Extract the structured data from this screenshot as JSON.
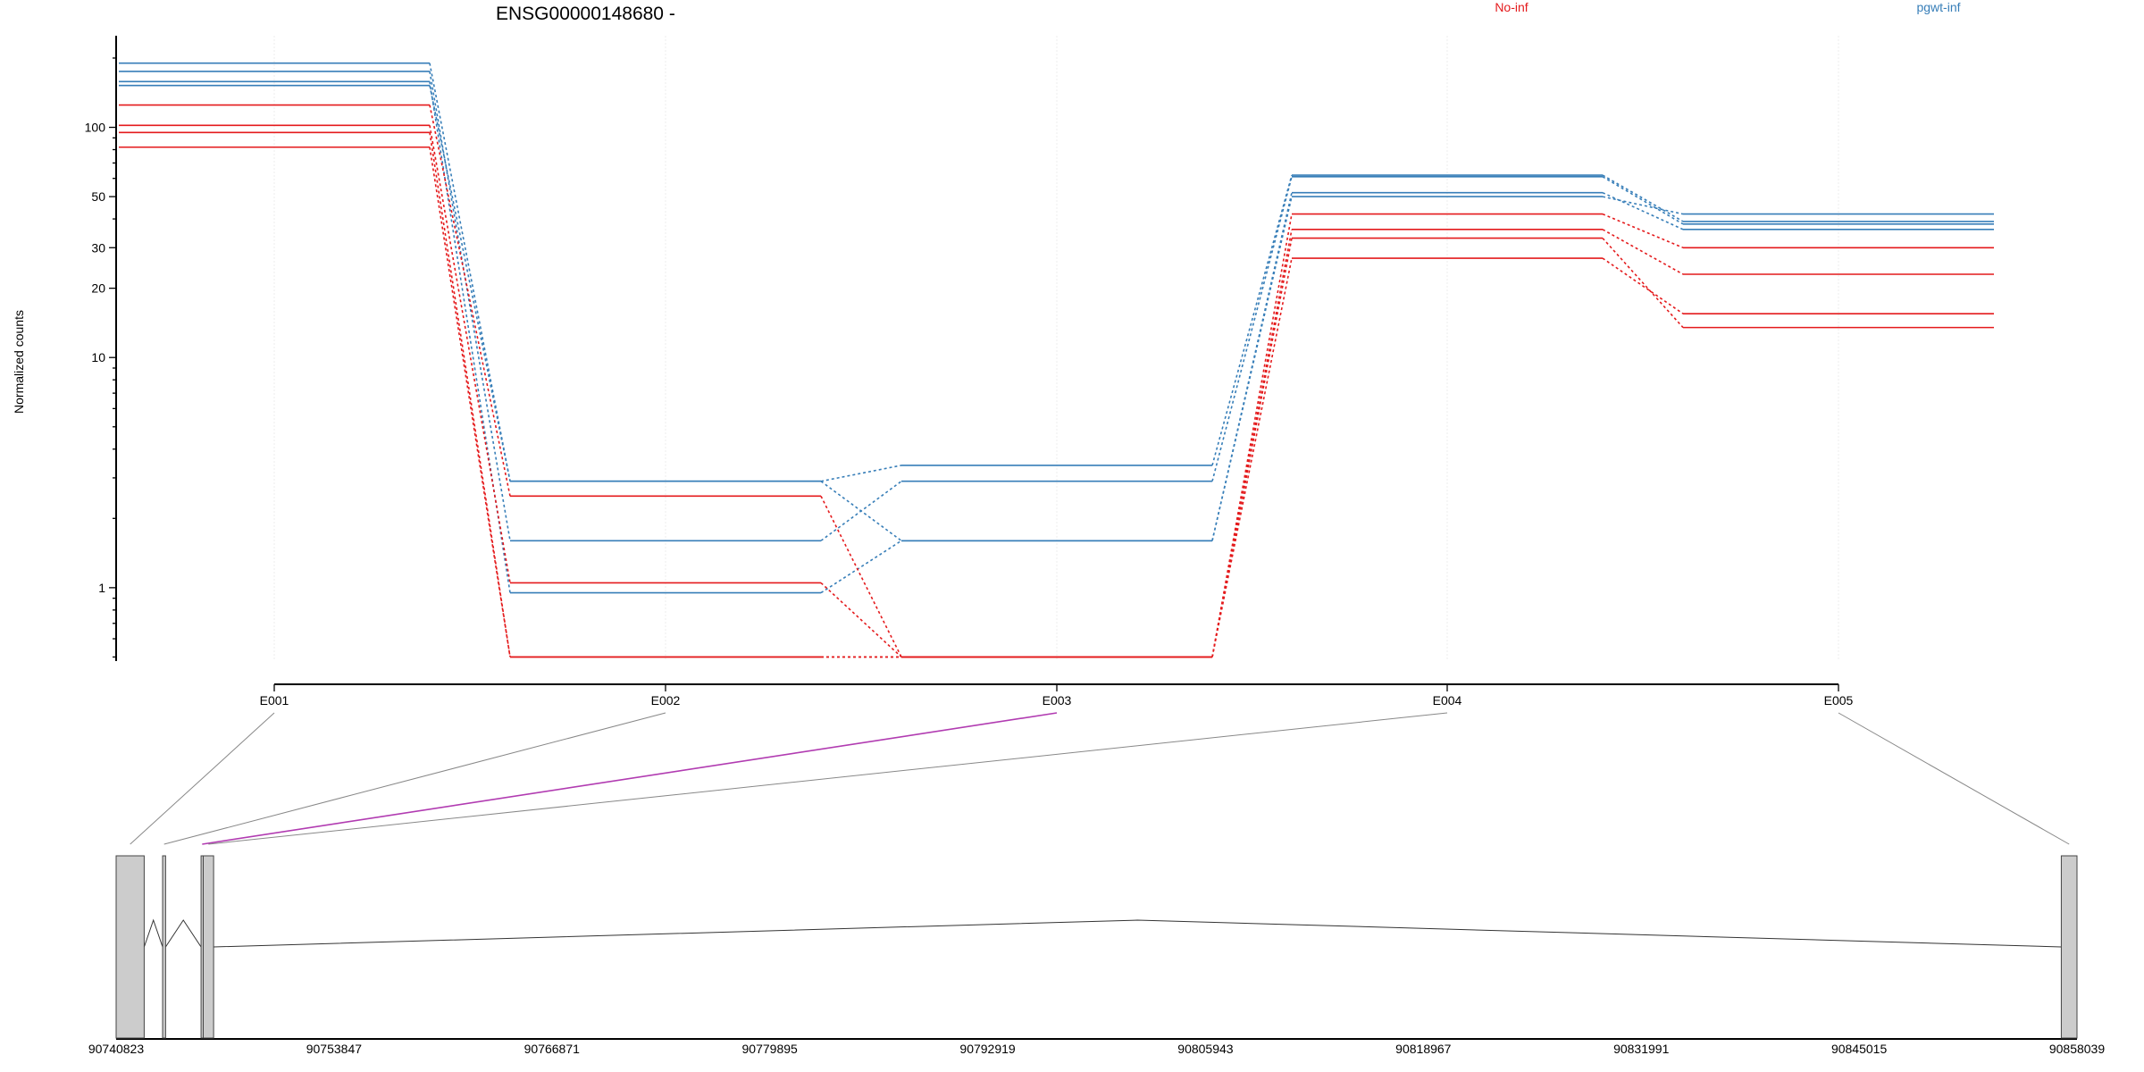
{
  "chart_data": {
    "type": "line",
    "title": "ENSG00000148680 -",
    "ylabel": "Normalized counts",
    "yscale": "log",
    "ylim": [
      0.48,
      250
    ],
    "yticks": [
      1,
      10,
      20,
      30,
      50,
      100
    ],
    "categories": [
      "E001",
      "E002",
      "E003",
      "E004",
      "E005"
    ],
    "legend": [
      {
        "name": "No-inf",
        "color": "#e41a1c"
      },
      {
        "name": "pgwt-inf",
        "color": "#377eb8"
      }
    ],
    "series": [
      {
        "group": "pgwt-inf",
        "color": "#377eb8",
        "values": [
          190,
          2.9,
          3.4,
          62,
          39
        ]
      },
      {
        "group": "pgwt-inf",
        "color": "#377eb8",
        "values": [
          175,
          1.6,
          2.9,
          61,
          38
        ]
      },
      {
        "group": "pgwt-inf",
        "color": "#377eb8",
        "values": [
          158,
          0.95,
          1.6,
          52,
          36
        ]
      },
      {
        "group": "pgwt-inf",
        "color": "#377eb8",
        "values": [
          152,
          2.9,
          1.6,
          50,
          42
        ]
      },
      {
        "group": "No-inf",
        "color": "#e41a1c",
        "values": [
          125,
          2.5,
          0.5,
          42,
          30
        ]
      },
      {
        "group": "No-inf",
        "color": "#e41a1c",
        "values": [
          102,
          1.05,
          0.5,
          36,
          23
        ]
      },
      {
        "group": "No-inf",
        "color": "#e41a1c",
        "values": [
          95,
          0.5,
          0.5,
          33,
          13.5
        ]
      },
      {
        "group": "No-inf",
        "color": "#e41a1c",
        "values": [
          82,
          0.5,
          0.5,
          27,
          15.5
        ]
      }
    ],
    "gene_model": {
      "coord_labels": [
        "90740823",
        "90753847",
        "90766871",
        "90779895",
        "90792919",
        "90805943",
        "90818967",
        "90831991",
        "90845015",
        "90858039"
      ],
      "range": [
        90740823,
        90858039
      ],
      "exons": [
        {
          "id": "E001",
          "start": 90740823,
          "end": 90742500,
          "highlight": false
        },
        {
          "id": "E002",
          "start": 90743600,
          "end": 90743780,
          "highlight": false
        },
        {
          "id": "E003",
          "start": 90745900,
          "end": 90746030,
          "highlight": true
        },
        {
          "id": "E004",
          "start": 90746030,
          "end": 90746650,
          "highlight": false
        },
        {
          "id": "E005",
          "start": 90857100,
          "end": 90858039,
          "highlight": false
        }
      ],
      "highlight_color": "#b13bb1"
    }
  }
}
